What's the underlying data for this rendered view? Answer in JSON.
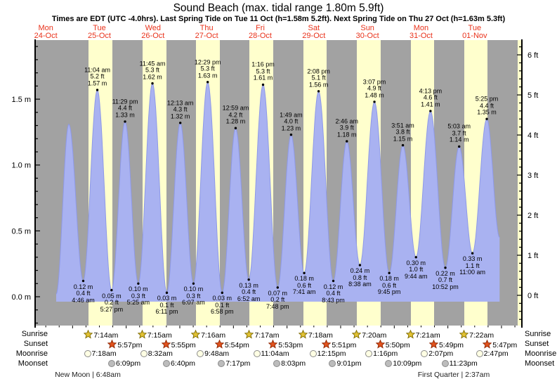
{
  "chart_data": {
    "type": "area",
    "title": "Sound Beach (max. tidal range 1.80m 5.9ft)",
    "subtitle": "Times are EDT (UTC -4.0hrs). Last Spring Tide on Tue 11 Oct (h=1.58m 5.2ft). Next Spring Tide on Thu 27 Oct (h=1.63m 5.3ft)",
    "x_axis_days": [
      {
        "name": "Mon",
        "date": "24-Oct"
      },
      {
        "name": "Tue",
        "date": "25-Oct"
      },
      {
        "name": "Wed",
        "date": "26-Oct"
      },
      {
        "name": "Thu",
        "date": "27-Oct"
      },
      {
        "name": "Fri",
        "date": "28-Oct"
      },
      {
        "name": "Sat",
        "date": "29-Oct"
      },
      {
        "name": "Sun",
        "date": "30-Oct"
      },
      {
        "name": "Mon",
        "date": "31-Oct"
      },
      {
        "name": "Tue",
        "date": "01-Nov"
      }
    ],
    "y_axis_left": {
      "unit": "m",
      "ticks": [
        {
          "v": 0,
          "label": "0.0 m"
        },
        {
          "v": 0.5,
          "label": "0.5 m"
        },
        {
          "v": 1,
          "label": "1.0 m"
        },
        {
          "v": 1.5,
          "label": "1.5 m"
        }
      ]
    },
    "y_axis_right": {
      "unit": "ft",
      "ticks": [
        {
          "v": 0,
          "label": "0 ft"
        },
        {
          "v": 1,
          "label": "1 ft"
        },
        {
          "v": 2,
          "label": "2 ft"
        },
        {
          "v": 3,
          "label": "3 ft"
        },
        {
          "v": 4,
          "label": "4 ft"
        },
        {
          "v": 5,
          "label": "5 ft"
        },
        {
          "v": 6,
          "label": "6 ft"
        }
      ]
    },
    "tide_events": [
      {
        "day": 0,
        "time": "4:40 pm",
        "m": "0.02",
        "type": "low",
        "labeled": false
      },
      {
        "day": 0,
        "time": "10:19 pm",
        "m": "1.31",
        "type": "high",
        "labeled": false
      },
      {
        "day": 1,
        "time": "4:46 am",
        "m": "0.12",
        "ft": "0.4",
        "type": "low"
      },
      {
        "day": 1,
        "time": "11:04 am",
        "m": "1.57",
        "ft": "5.2",
        "type": "high"
      },
      {
        "day": 1,
        "time": "5:27 pm",
        "m": "0.05",
        "ft": "0.2",
        "type": "low"
      },
      {
        "day": 1,
        "time": "11:29 pm",
        "m": "1.33",
        "ft": "4.4",
        "type": "high"
      },
      {
        "day": 2,
        "time": "5:25 am",
        "m": "0.10",
        "ft": "0.3",
        "type": "low"
      },
      {
        "day": 2,
        "time": "11:45 am",
        "m": "1.62",
        "ft": "5.3",
        "type": "high"
      },
      {
        "day": 2,
        "time": "6:11 pm",
        "m": "0.03",
        "ft": "0.1",
        "type": "low"
      },
      {
        "day": 3,
        "time": "12:13 am",
        "m": "1.32",
        "ft": "4.3",
        "type": "high"
      },
      {
        "day": 3,
        "time": "6:07 am",
        "m": "0.10",
        "ft": "0.3",
        "type": "low"
      },
      {
        "day": 3,
        "time": "12:29 pm",
        "m": "1.63",
        "ft": "5.3",
        "type": "high"
      },
      {
        "day": 3,
        "time": "6:58 pm",
        "m": "0.03",
        "ft": "0.1",
        "type": "low"
      },
      {
        "day": 4,
        "time": "12:59 am",
        "m": "1.28",
        "ft": "4.2",
        "type": "high"
      },
      {
        "day": 4,
        "time": "6:52 am",
        "m": "0.13",
        "ft": "0.4",
        "type": "low"
      },
      {
        "day": 4,
        "time": "1:16 pm",
        "m": "1.61",
        "ft": "5.3",
        "type": "high"
      },
      {
        "day": 4,
        "time": "7:48 pm",
        "m": "0.07",
        "ft": "0.2",
        "type": "low"
      },
      {
        "day": 5,
        "time": "1:49 am",
        "m": "1.23",
        "ft": "4.0",
        "type": "high"
      },
      {
        "day": 5,
        "time": "7:41 am",
        "m": "0.18",
        "ft": "0.6",
        "type": "low"
      },
      {
        "day": 5,
        "time": "2:08 pm",
        "m": "1.56",
        "ft": "5.1",
        "type": "high"
      },
      {
        "day": 5,
        "time": "8:43 pm",
        "m": "0.12",
        "ft": "0.4",
        "type": "low"
      },
      {
        "day": 6,
        "time": "2:46 am",
        "m": "1.18",
        "ft": "3.9",
        "type": "high"
      },
      {
        "day": 6,
        "time": "8:38 am",
        "m": "0.24",
        "ft": "0.8",
        "type": "low"
      },
      {
        "day": 6,
        "time": "3:07 pm",
        "m": "1.48",
        "ft": "4.9",
        "type": "high"
      },
      {
        "day": 6,
        "time": "9:45 pm",
        "m": "0.18",
        "ft": "0.6",
        "type": "low"
      },
      {
        "day": 7,
        "time": "3:51 am",
        "m": "1.15",
        "ft": "3.8",
        "type": "high"
      },
      {
        "day": 7,
        "time": "9:44 am",
        "m": "0.30",
        "ft": "1.0",
        "type": "low"
      },
      {
        "day": 7,
        "time": "4:13 pm",
        "m": "1.41",
        "ft": "4.6",
        "type": "high"
      },
      {
        "day": 7,
        "time": "10:52 pm",
        "m": "0.22",
        "ft": "0.7",
        "type": "low"
      },
      {
        "day": 8,
        "time": "5:03 am",
        "m": "1.14",
        "ft": "3.7",
        "type": "high"
      },
      {
        "day": 8,
        "time": "11:00 am",
        "m": "0.33",
        "ft": "1.1",
        "type": "low"
      },
      {
        "day": 8,
        "time": "5:25 pm",
        "m": "1.35",
        "ft": "4.4",
        "type": "high"
      },
      {
        "day": 8,
        "time": "11:10 pm",
        "m": "0.45",
        "type": "low",
        "labeled": false
      }
    ],
    "astro_rows": [
      {
        "id": "sunrise",
        "label": "Sunrise",
        "icon": "sunrise-star-icon",
        "events": [
          {
            "day": 1,
            "time": "7:14am"
          },
          {
            "day": 2,
            "time": "7:15am"
          },
          {
            "day": 3,
            "time": "7:16am"
          },
          {
            "day": 4,
            "time": "7:17am"
          },
          {
            "day": 5,
            "time": "7:18am"
          },
          {
            "day": 6,
            "time": "7:20am"
          },
          {
            "day": 7,
            "time": "7:21am"
          },
          {
            "day": 8,
            "time": "7:22am"
          }
        ]
      },
      {
        "id": "sunset",
        "label": "Sunset",
        "icon": "sunset-star-icon",
        "events": [
          {
            "day": 1,
            "time": "5:57pm"
          },
          {
            "day": 2,
            "time": "5:55pm"
          },
          {
            "day": 3,
            "time": "5:54pm"
          },
          {
            "day": 4,
            "time": "5:53pm"
          },
          {
            "day": 5,
            "time": "5:51pm"
          },
          {
            "day": 6,
            "time": "5:50pm"
          },
          {
            "day": 7,
            "time": "5:49pm"
          },
          {
            "day": 8,
            "time": "5:47pm"
          }
        ]
      },
      {
        "id": "moonrise",
        "label": "Moonrise",
        "icon": "moonrise-circle-icon",
        "events": [
          {
            "day": 1,
            "time": "7:18am"
          },
          {
            "day": 2,
            "time": "8:32am"
          },
          {
            "day": 3,
            "time": "9:48am"
          },
          {
            "day": 4,
            "time": "11:04am"
          },
          {
            "day": 5,
            "time": "12:15pm"
          },
          {
            "day": 6,
            "time": "1:16pm"
          },
          {
            "day": 7,
            "time": "2:07pm"
          },
          {
            "day": 8,
            "time": "2:47pm"
          }
        ]
      },
      {
        "id": "moonset",
        "label": "Moonset",
        "icon": "moonset-circle-icon",
        "events": [
          {
            "day": 1,
            "time": "6:09pm"
          },
          {
            "day": 2,
            "time": "6:40pm"
          },
          {
            "day": 3,
            "time": "7:17pm"
          },
          {
            "day": 4,
            "time": "8:03pm"
          },
          {
            "day": 5,
            "time": "9:01pm"
          },
          {
            "day": 6,
            "time": "10:09pm"
          },
          {
            "day": 7,
            "time": "11:23pm"
          }
        ]
      }
    ],
    "moon_phases": [
      {
        "label": "New Moon",
        "time": "6:48am",
        "day": 1
      },
      {
        "label": "First Quarter",
        "time": "2:37am",
        "day": 8
      }
    ],
    "colors": {
      "day_label": "#e9321b",
      "stripe_night": "#a2a2a2",
      "stripe_day": "#ffffcd",
      "tide_fill": "#a9b2f1",
      "tide_stroke": "#8e99e8",
      "sunrise_star_fill": "#e2c233",
      "sunrise_star_stroke": "#7d6a00",
      "sunset_star_fill": "#e1521d",
      "sunset_star_stroke": "#8e2500",
      "moonrise_circle": "#ffffe4",
      "moonset_circle": "#bcbcbc",
      "annotation_text": "#000000"
    }
  }
}
